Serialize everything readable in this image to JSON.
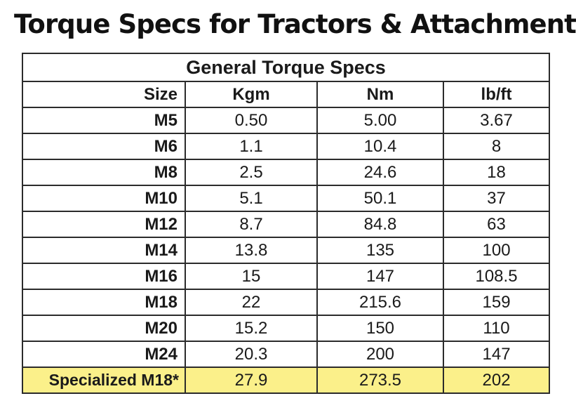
{
  "page_title": "Torque Specs for Tractors & Attachments",
  "table": {
    "caption": "General Torque Specs",
    "headers": [
      "Size",
      "Kgm",
      "Nm",
      "lb/ft"
    ],
    "rows": [
      [
        "M5",
        "0.50",
        "5.00",
        "3.67"
      ],
      [
        "M6",
        "1.1",
        "10.4",
        "8"
      ],
      [
        "M8",
        "2.5",
        "24.6",
        "18"
      ],
      [
        "M10",
        "5.1",
        "50.1",
        "37"
      ],
      [
        "M12",
        "8.7",
        "84.8",
        "63"
      ],
      [
        "M14",
        "13.8",
        "135",
        "100"
      ],
      [
        "M16",
        "15",
        "147",
        "108.5"
      ],
      [
        "M18",
        "22",
        "215.6",
        "159"
      ],
      [
        "M20",
        "15.2",
        "150",
        "110"
      ],
      [
        "M24",
        "20.3",
        "200",
        "147"
      ]
    ],
    "highlight_row": [
      "Specialized M18*",
      "27.9",
      "273.5",
      "202"
    ],
    "colors": {
      "highlight": "#fbf08a",
      "border": "#2b2b2b"
    }
  }
}
